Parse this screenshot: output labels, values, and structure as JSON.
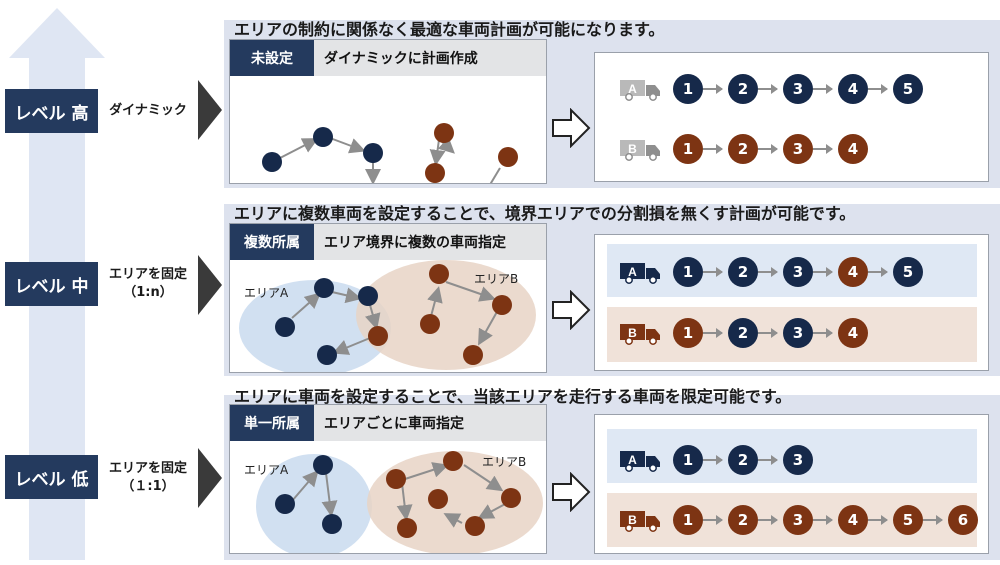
{
  "levels": [
    {
      "label": "レベル 高",
      "desc": [
        "ダイナミック"
      ]
    },
    {
      "label": "レベル 中",
      "desc": [
        "エリアを固定",
        "（1:n）"
      ]
    },
    {
      "label": "レベル 低",
      "desc": [
        "エリアを固定",
        "（１:1）"
      ]
    }
  ],
  "sections": [
    {
      "title": "エリアの制約に関係なく最適な車両計画が可能になります。",
      "tag": "未設定",
      "heading": "ダイナミックに計画作成",
      "area_labels": [],
      "vehicles": [
        {
          "label": "A",
          "count": 5,
          "color": "navy"
        },
        {
          "label": "B",
          "count": 4,
          "color": "brown"
        }
      ]
    },
    {
      "title": "エリアに複数車両を設定することで、境界エリアでの分割損を無くす計画が可能です。",
      "tag": "複数所属",
      "heading": "エリア境界に複数の車両指定",
      "area_labels": [
        "エリアA",
        "エリアB"
      ],
      "vehicles": [
        {
          "label": "A",
          "count": 5,
          "color": "mixed",
          "highlight": [
            4
          ]
        },
        {
          "label": "B",
          "count": 4,
          "color": "mixed",
          "highlight": [
            2,
            3
          ]
        }
      ]
    },
    {
      "title": "エリアに車両を設定することで、当該エリアを走行する車両を限定可能です。",
      "tag": "単一所属",
      "heading": "エリアごとに車両指定",
      "area_labels": [
        "エリアA",
        "エリアB"
      ],
      "vehicles": [
        {
          "label": "A",
          "count": 3,
          "color": "navy"
        },
        {
          "label": "B",
          "count": 6,
          "color": "brown"
        }
      ]
    }
  ],
  "colors": {
    "navy": "#16294a",
    "brown": "#7d3413",
    "header": "#243a5e",
    "band": "#dde2ee"
  },
  "icons": [
    "truck-icon",
    "up-arrow-icon",
    "chevron-right-icon",
    "outline-arrow-icon"
  ]
}
